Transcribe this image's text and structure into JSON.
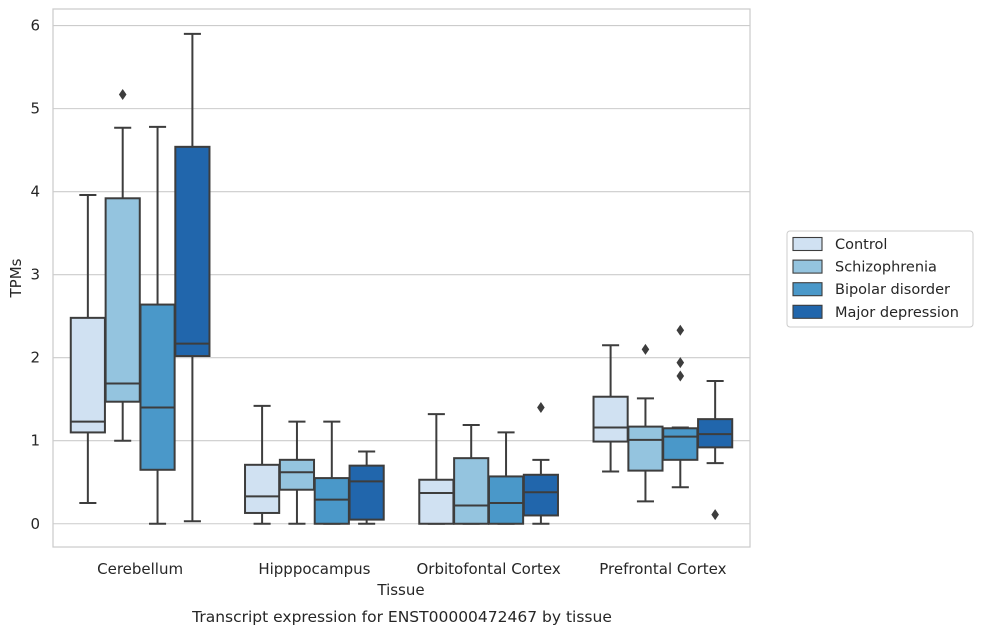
{
  "caption": "Transcript expression for ENST00000472467 by tissue",
  "chart_data": {
    "type": "box",
    "xlabel": "Tissue",
    "ylabel": "TPMs",
    "ylim": [
      -0.28,
      6.2
    ],
    "yticks": [
      0,
      1,
      2,
      3,
      4,
      5,
      6
    ],
    "grid": "horizontal",
    "legend_position": "right",
    "categories": [
      "Cerebellum",
      "Hipppocampus",
      "Orbitofontal Cortex",
      "Prefrontal Cortex"
    ],
    "series": [
      {
        "name": "Control",
        "color": "#d0e1f2",
        "boxes": [
          {
            "whisker_low": 0.25,
            "q1": 1.1,
            "median": 1.23,
            "q3": 2.48,
            "whisker_high": 3.96,
            "outliers": []
          },
          {
            "whisker_low": 0.0,
            "q1": 0.13,
            "median": 0.33,
            "q3": 0.71,
            "whisker_high": 1.42,
            "outliers": []
          },
          {
            "whisker_low": 0.0,
            "q1": 0.0,
            "median": 0.37,
            "q3": 0.53,
            "whisker_high": 1.32,
            "outliers": []
          },
          {
            "whisker_low": 0.63,
            "q1": 0.99,
            "median": 1.16,
            "q3": 1.53,
            "whisker_high": 2.15,
            "outliers": []
          }
        ]
      },
      {
        "name": "Schizophrenia",
        "color": "#94c4df",
        "boxes": [
          {
            "whisker_low": 1.0,
            "q1": 1.47,
            "median": 1.69,
            "q3": 3.92,
            "whisker_high": 4.77,
            "outliers": [
              5.17
            ]
          },
          {
            "whisker_low": 0.0,
            "q1": 0.41,
            "median": 0.62,
            "q3": 0.77,
            "whisker_high": 1.23,
            "outliers": []
          },
          {
            "whisker_low": 0.0,
            "q1": 0.0,
            "median": 0.22,
            "q3": 0.79,
            "whisker_high": 1.19,
            "outliers": []
          },
          {
            "whisker_low": 0.27,
            "q1": 0.64,
            "median": 1.01,
            "q3": 1.17,
            "whisker_high": 1.51,
            "outliers": [
              2.1
            ]
          }
        ]
      },
      {
        "name": "Bipolar disorder",
        "color": "#4a98c9",
        "boxes": [
          {
            "whisker_low": 0.0,
            "q1": 0.65,
            "median": 1.4,
            "q3": 2.64,
            "whisker_high": 4.78,
            "outliers": []
          },
          {
            "whisker_low": 0.0,
            "q1": 0.0,
            "median": 0.29,
            "q3": 0.55,
            "whisker_high": 1.23,
            "outliers": []
          },
          {
            "whisker_low": 0.0,
            "q1": 0.0,
            "median": 0.25,
            "q3": 0.57,
            "whisker_high": 1.1,
            "outliers": []
          },
          {
            "whisker_low": 0.44,
            "q1": 0.77,
            "median": 1.05,
            "q3": 1.15,
            "whisker_high": 1.16,
            "outliers": [
              1.78,
              1.94,
              2.33
            ]
          }
        ]
      },
      {
        "name": "Major depression",
        "color": "#2166ac",
        "boxes": [
          {
            "whisker_low": 0.03,
            "q1": 2.02,
            "median": 2.17,
            "q3": 4.54,
            "whisker_high": 5.9,
            "outliers": []
          },
          {
            "whisker_low": 0.0,
            "q1": 0.05,
            "median": 0.51,
            "q3": 0.7,
            "whisker_high": 0.87,
            "outliers": []
          },
          {
            "whisker_low": 0.0,
            "q1": 0.1,
            "median": 0.38,
            "q3": 0.59,
            "whisker_high": 0.77,
            "outliers": [
              1.4
            ]
          },
          {
            "whisker_low": 0.73,
            "q1": 0.92,
            "median": 1.08,
            "q3": 1.26,
            "whisker_high": 1.72,
            "outliers": [
              0.11
            ]
          }
        ]
      }
    ]
  }
}
